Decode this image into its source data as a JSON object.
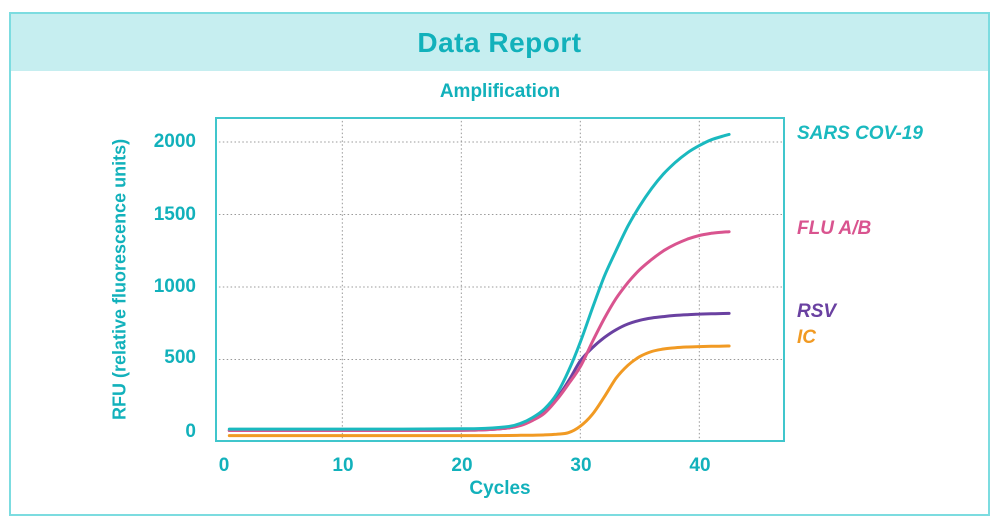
{
  "header": {
    "title": "Data Report"
  },
  "theme": {
    "accent_teal": "#12b1bb",
    "header_background": "#c6eef0",
    "card_border": "#7cdce0",
    "plot_frame": "#40c6cc",
    "gridline_color": "#999999"
  },
  "chart_data": {
    "type": "line",
    "title": "Amplification",
    "xlabel": "Cycles",
    "ylabel": "RFU (relative fluorescence units)",
    "xlim": [
      -0.7,
      47.2
    ],
    "ylim": [
      -69,
      2172
    ],
    "x_ticks": [
      0,
      10,
      20,
      30,
      40
    ],
    "y_ticks": [
      0,
      500,
      1000,
      1500,
      2000
    ],
    "grid": {
      "x": [
        10,
        20,
        30,
        40
      ],
      "y": [
        500,
        1000,
        1500,
        2000
      ],
      "style": "dotted"
    },
    "legend_position": "right",
    "series": [
      {
        "name": "SARS COV-19",
        "color": "#1ab9bf",
        "x": [
          0.5,
          5,
          10,
          15,
          20,
          22,
          24,
          25,
          26,
          27,
          28,
          29,
          30,
          31,
          32,
          33,
          34,
          35,
          36,
          37,
          38,
          39,
          40,
          41,
          42,
          42.5
        ],
        "y": [
          20,
          20,
          20,
          20,
          22,
          25,
          38,
          60,
          100,
          160,
          260,
          420,
          620,
          850,
          1070,
          1250,
          1420,
          1560,
          1680,
          1780,
          1860,
          1925,
          1975,
          2015,
          2040,
          2052
        ]
      },
      {
        "name": "FLU A/B",
        "color": "#d9548f",
        "x": [
          0.5,
          5,
          10,
          15,
          20,
          22,
          24,
          25,
          26,
          27,
          28,
          29,
          30,
          31,
          32,
          33,
          34,
          35,
          36,
          37,
          38,
          39,
          40,
          41,
          42,
          42.5
        ],
        "y": [
          10,
          10,
          10,
          10,
          12,
          15,
          28,
          45,
          80,
          130,
          220,
          330,
          450,
          620,
          780,
          920,
          1030,
          1120,
          1190,
          1250,
          1295,
          1330,
          1355,
          1370,
          1378,
          1381
        ]
      },
      {
        "name": "RSV",
        "color": "#6a41a1",
        "x": [
          0.5,
          5,
          10,
          15,
          20,
          22,
          24,
          25,
          26,
          27,
          28,
          29,
          30,
          31,
          32,
          33,
          34,
          35,
          36,
          37,
          38,
          39,
          40,
          41,
          42,
          42.5
        ],
        "y": [
          10,
          10,
          10,
          10,
          12,
          15,
          28,
          48,
          85,
          140,
          230,
          350,
          490,
          580,
          650,
          705,
          745,
          770,
          786,
          796,
          804,
          809,
          813,
          815,
          817,
          818
        ]
      },
      {
        "name": "IC",
        "color": "#f19a23",
        "x": [
          0.5,
          5,
          10,
          15,
          20,
          22,
          24,
          25,
          26,
          27,
          28,
          29,
          30,
          31,
          32,
          33,
          34,
          35,
          36,
          37,
          38,
          39,
          40,
          41,
          42,
          42.5
        ],
        "y": [
          -25,
          -25,
          -25,
          -25,
          -25,
          -25,
          -24,
          -23,
          -22,
          -20,
          -15,
          -5,
          40,
          120,
          240,
          370,
          460,
          520,
          555,
          572,
          581,
          586,
          589,
          591,
          592,
          593
        ]
      }
    ]
  }
}
